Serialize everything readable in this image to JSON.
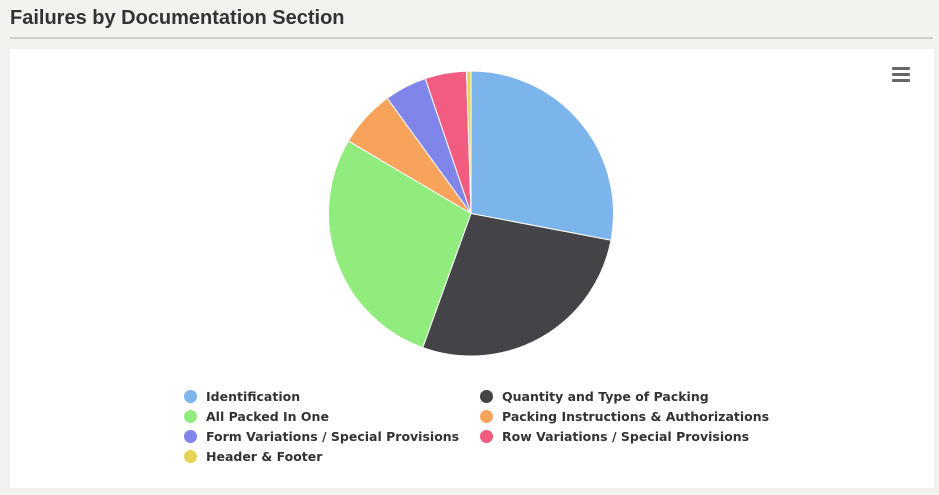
{
  "title": "Failures by Documentation Section",
  "menu_icon": "hamburger-menu-icon",
  "chart_data": {
    "type": "pie",
    "title": "",
    "series": [
      {
        "values": [
          {
            "label": "Identification",
            "value": 28.0,
            "color": "#7cb5ec"
          },
          {
            "label": "Quantity and Type of Packing",
            "value": 27.5,
            "color": "#434348"
          },
          {
            "label": "All Packed In One",
            "value": 28.0,
            "color": "#90ed7d"
          },
          {
            "label": "Packing Instructions & Authorizations",
            "value": 6.5,
            "color": "#f7a35c"
          },
          {
            "label": "Form Variations / Special Provisions",
            "value": 4.8,
            "color": "#8085e9"
          },
          {
            "label": "Row Variations / Special Provisions",
            "value": 4.7,
            "color": "#f15c80"
          },
          {
            "label": "Header & Footer",
            "value": 0.5,
            "color": "#e4d354"
          }
        ]
      }
    ],
    "legend_position": "bottom"
  }
}
